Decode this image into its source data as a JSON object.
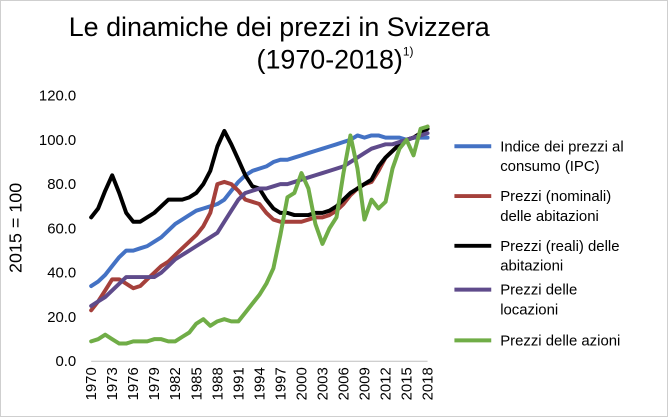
{
  "chart_data": {
    "type": "line",
    "title_line1": "Le dinamiche dei prezzi in Svizzera",
    "title_line2": "(1970-2018)",
    "title_sup": "1)",
    "ylabel": "2015 = 100",
    "ylim": [
      0,
      120
    ],
    "yticks": [
      "0.0",
      "20.0",
      "40.0",
      "60.0",
      "80.0",
      "100.0",
      "120.0"
    ],
    "xticks": [
      "1970",
      "1973",
      "1976",
      "1979",
      "1982",
      "1985",
      "1988",
      "1991",
      "1994",
      "1997",
      "2000",
      "2003",
      "2006",
      "2009",
      "2012",
      "2015",
      "2018"
    ],
    "x": [
      1970,
      1971,
      1972,
      1973,
      1974,
      1975,
      1976,
      1977,
      1978,
      1979,
      1980,
      1981,
      1982,
      1983,
      1984,
      1985,
      1986,
      1987,
      1988,
      1989,
      1990,
      1991,
      1992,
      1993,
      1994,
      1995,
      1996,
      1997,
      1998,
      1999,
      2000,
      2001,
      2002,
      2003,
      2004,
      2005,
      2006,
      2007,
      2008,
      2009,
      2010,
      2011,
      2012,
      2013,
      2014,
      2015,
      2016,
      2017,
      2018
    ],
    "grid": false,
    "legend_position": "right",
    "series": [
      {
        "name": "Indice dei prezzi al consumo (IPC)",
        "color": "#4472c4",
        "values": [
          34,
          36,
          39,
          43,
          47,
          50,
          50,
          51,
          52,
          54,
          56,
          59,
          62,
          64,
          66,
          68,
          69,
          70,
          71,
          73,
          77,
          81,
          84,
          86,
          87,
          88,
          90,
          91,
          91,
          92,
          93,
          94,
          95,
          96,
          97,
          98,
          99,
          100,
          102,
          101,
          102,
          102,
          101,
          101,
          101,
          100,
          101,
          101,
          101
        ]
      },
      {
        "name": "Prezzi (nominali) delle abitazioni",
        "color": "#a5403b",
        "values": [
          23,
          27,
          32,
          37,
          37,
          35,
          33,
          34,
          37,
          40,
          43,
          45,
          48,
          51,
          54,
          57,
          61,
          67,
          80,
          81,
          80,
          77,
          73,
          72,
          71,
          67,
          64,
          63,
          63,
          63,
          63,
          64,
          65,
          65,
          66,
          68,
          71,
          75,
          78,
          80,
          81,
          86,
          92,
          95,
          98,
          100,
          101,
          103,
          106
        ]
      },
      {
        "name": "Prezzi (reali) delle abitazioni",
        "color": "#000000",
        "values": [
          65,
          69,
          77,
          84,
          76,
          67,
          63,
          63,
          65,
          67,
          70,
          73,
          73,
          73,
          74,
          76,
          80,
          86,
          97,
          104,
          98,
          91,
          84,
          79,
          78,
          73,
          69,
          67,
          67,
          66,
          66,
          66,
          67,
          67,
          68,
          70,
          73,
          76,
          78,
          80,
          82,
          88,
          92,
          95,
          98,
          100,
          101,
          103,
          105
        ]
      },
      {
        "name": "Prezzi delle locazioni",
        "color": "#5f4b8b",
        "values": [
          25,
          27,
          29,
          32,
          35,
          38,
          38,
          38,
          38,
          38,
          40,
          43,
          46,
          48,
          50,
          52,
          54,
          56,
          58,
          63,
          68,
          73,
          76,
          77,
          78,
          78,
          79,
          80,
          80,
          81,
          82,
          83,
          84,
          85,
          86,
          87,
          88,
          90,
          92,
          94,
          96,
          97,
          98,
          98,
          99,
          100,
          101,
          102,
          103
        ]
      },
      {
        "name": "Prezzi delle azioni",
        "color": "#70ad47",
        "values": [
          9,
          10,
          12,
          10,
          8,
          8,
          9,
          9,
          9,
          10,
          10,
          9,
          9,
          11,
          13,
          17,
          19,
          16,
          18,
          19,
          18,
          18,
          22,
          26,
          30,
          35,
          42,
          57,
          74,
          76,
          85,
          78,
          62,
          53,
          60,
          65,
          85,
          102,
          87,
          64,
          73,
          69,
          72,
          87,
          96,
          100,
          93,
          105,
          106
        ]
      }
    ]
  }
}
